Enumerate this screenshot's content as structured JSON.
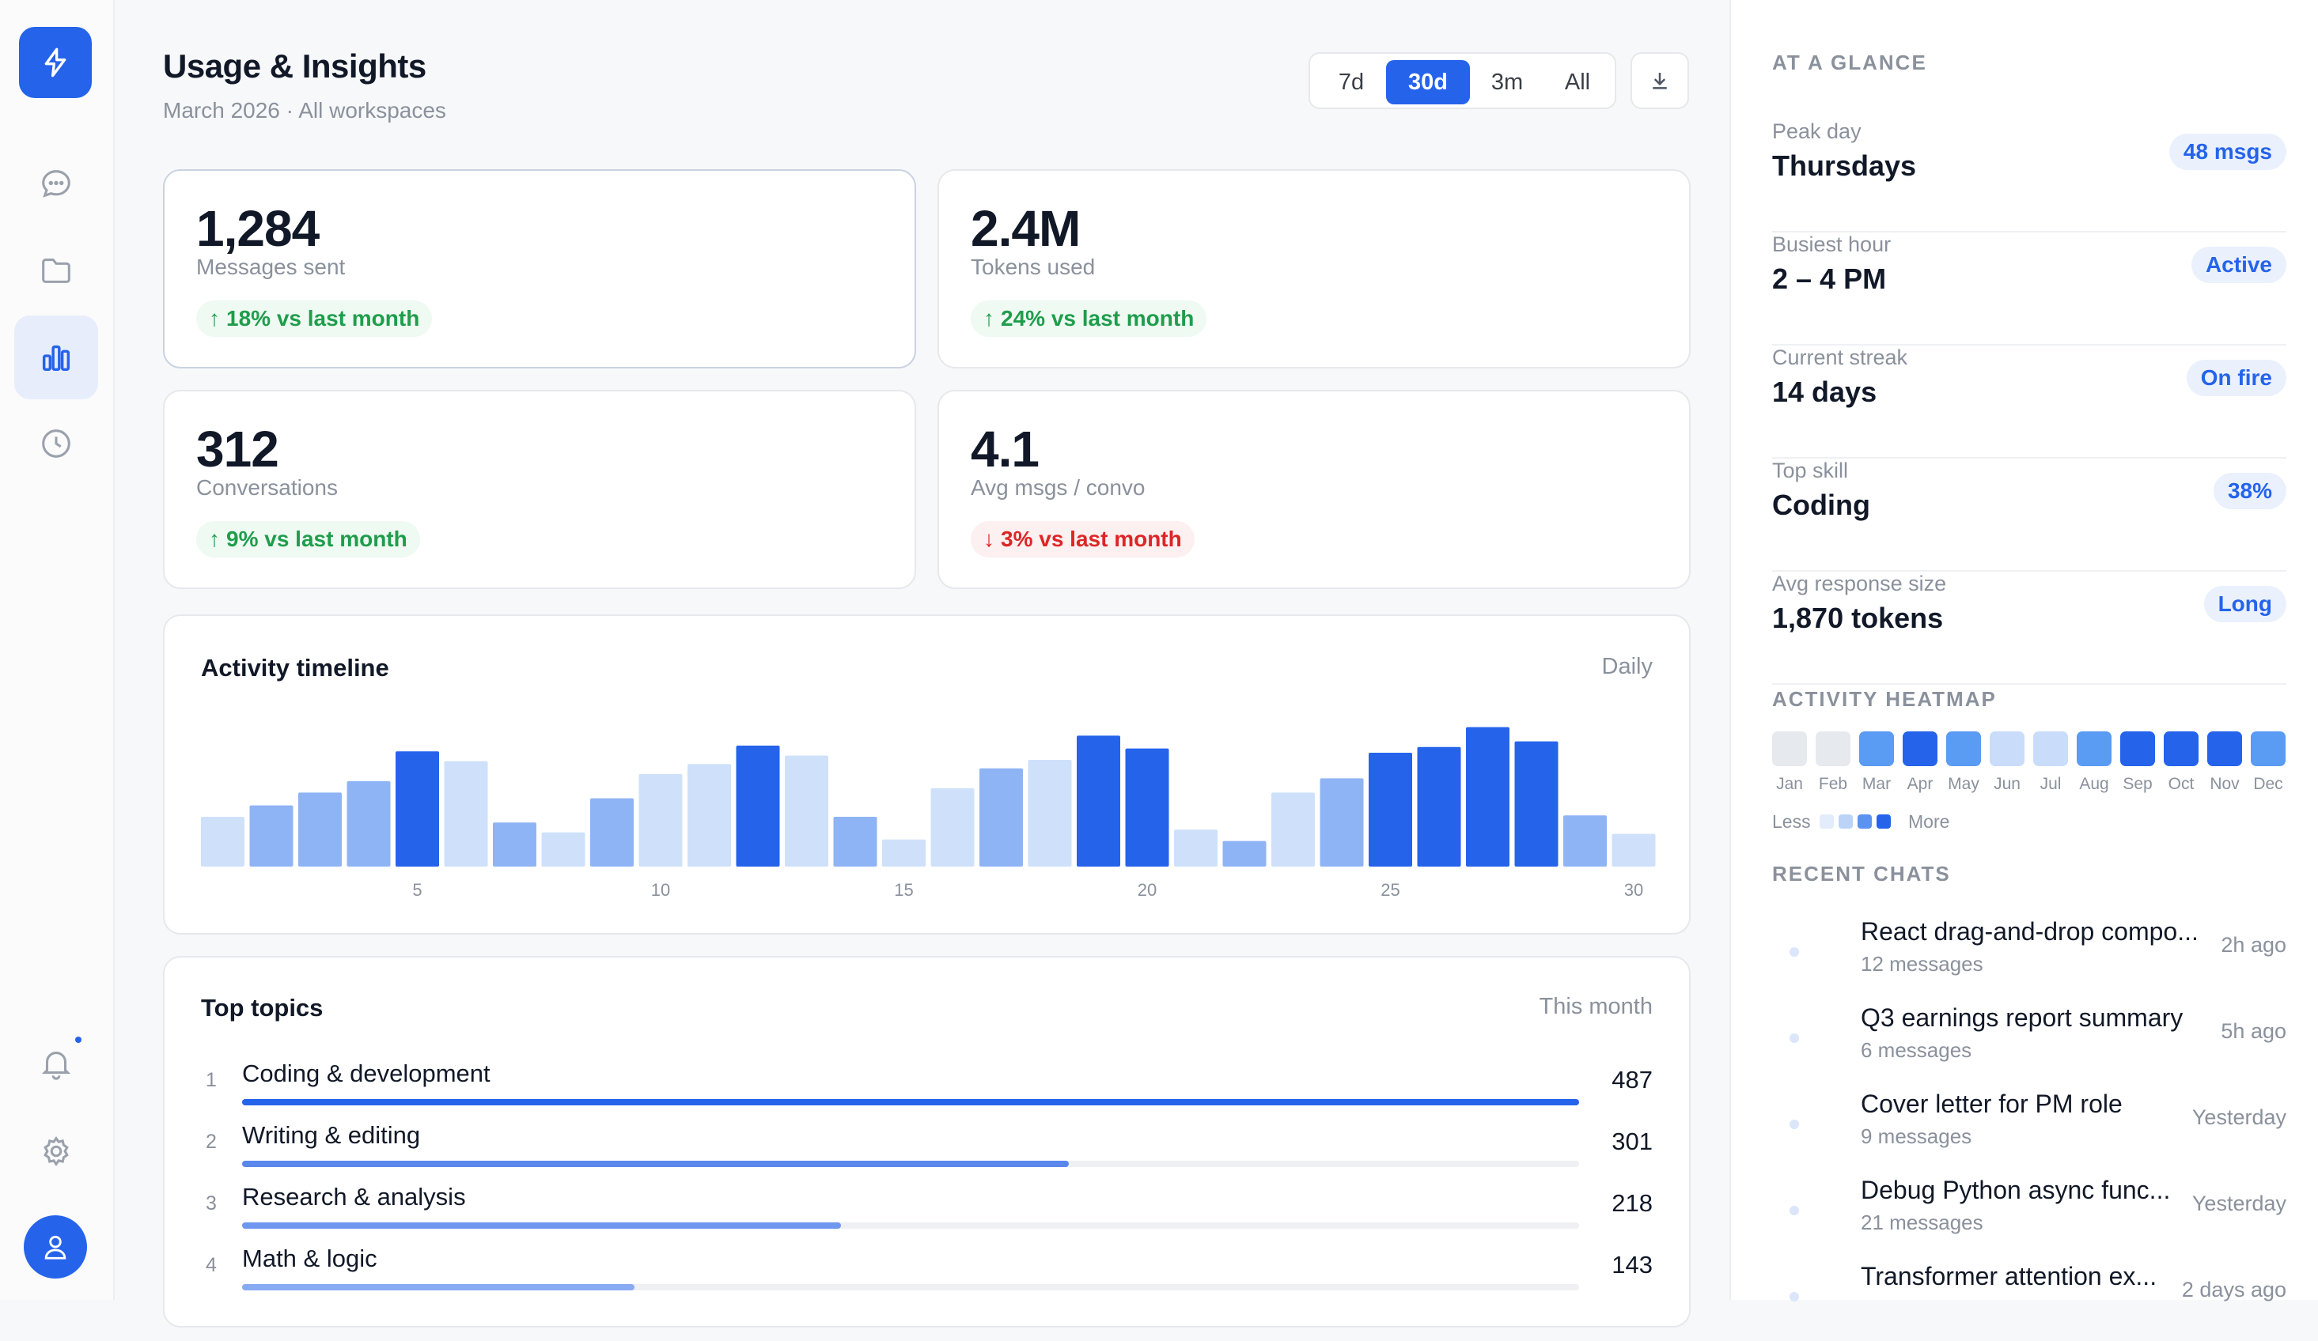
{
  "header": {
    "title": "Usage & Insights",
    "subtitle": "March 2026 · All workspaces"
  },
  "range": {
    "options": [
      "7d",
      "30d",
      "3m",
      "All"
    ],
    "selected": "30d"
  },
  "stats": [
    {
      "value": "1,284",
      "label": "Messages sent",
      "delta": "18% vs last month",
      "direction": "up"
    },
    {
      "value": "2.4M",
      "label": "Tokens used",
      "delta": "24% vs last month",
      "direction": "up"
    },
    {
      "value": "312",
      "label": "Conversations",
      "delta": "9% vs last month",
      "direction": "up"
    },
    {
      "value": "4.1",
      "label": "Avg msgs / convo",
      "delta": "3% vs last month",
      "direction": "down"
    }
  ],
  "timeline": {
    "title": "Activity timeline",
    "aside": "Daily"
  },
  "chart_data": {
    "type": "bar",
    "x": [
      1,
      2,
      3,
      4,
      5,
      6,
      7,
      8,
      9,
      10,
      11,
      12,
      13,
      14,
      15,
      16,
      17,
      18,
      19,
      20,
      21,
      22,
      23,
      24,
      25,
      26,
      27,
      28,
      29,
      30
    ],
    "tick_labels": [
      "5",
      "10",
      "15",
      "20",
      "25",
      "30"
    ],
    "tick_values": [
      5,
      10,
      15,
      20,
      25,
      30
    ],
    "values": [
      35,
      43,
      52,
      60,
      81,
      74,
      31,
      24,
      48,
      65,
      72,
      85,
      78,
      35,
      19,
      55,
      69,
      75,
      92,
      83,
      26,
      18,
      52,
      62,
      80,
      84,
      98,
      88,
      36,
      23
    ],
    "intensity": [
      1,
      2,
      2,
      2,
      4,
      1,
      2,
      1,
      2,
      1,
      1,
      4,
      1,
      2,
      1,
      1,
      2,
      1,
      4,
      4,
      1,
      2,
      1,
      2,
      4,
      4,
      4,
      4,
      2,
      1
    ],
    "ylim": [
      0,
      100
    ],
    "title": "",
    "xlabel": "",
    "ylabel": "",
    "grid": false
  },
  "topics": {
    "title": "Top topics",
    "aside": "This month",
    "max": 487,
    "items": [
      {
        "rank": "1",
        "name": "Coding & development",
        "count": "487",
        "value": 487,
        "color": "#2563eb"
      },
      {
        "rank": "2",
        "name": "Writing & editing",
        "count": "301",
        "value": 301,
        "color": "#5a87ec"
      },
      {
        "rank": "3",
        "name": "Research & analysis",
        "count": "218",
        "value": 218,
        "color": "#6f97ef"
      },
      {
        "rank": "4",
        "name": "Math & logic",
        "count": "143",
        "value": 143,
        "color": "#88aaf2"
      }
    ]
  },
  "glance": {
    "label": "AT A GLANCE",
    "items": [
      {
        "label": "Peak day",
        "value": "Thursdays",
        "badge": "48 msgs"
      },
      {
        "label": "Busiest hour",
        "value": "2 – 4 PM",
        "badge": "Active"
      },
      {
        "label": "Current streak",
        "value": "14 days",
        "badge": "On fire"
      },
      {
        "label": "Top skill",
        "value": "Coding",
        "badge": "38%"
      },
      {
        "label": "Avg response size",
        "value": "1,870 tokens",
        "badge": "Long"
      }
    ]
  },
  "heatmap": {
    "label": "ACTIVITY HEATMAP",
    "months": [
      "Jan",
      "Feb",
      "Mar",
      "Apr",
      "May",
      "Jun",
      "Jul",
      "Aug",
      "Sep",
      "Oct",
      "Nov",
      "Dec"
    ],
    "levels": [
      0,
      0,
      3,
      4,
      3,
      2,
      2,
      3,
      4,
      4,
      4,
      3
    ],
    "legend_less": "Less",
    "legend_more": "More"
  },
  "recent": {
    "label": "RECENT CHATS",
    "items": [
      {
        "title": "React drag-and-drop compo...",
        "sub": "12 messages",
        "time": "2h ago"
      },
      {
        "title": "Q3 earnings report summary",
        "sub": "6 messages",
        "time": "5h ago"
      },
      {
        "title": "Cover letter for PM role",
        "sub": "9 messages",
        "time": "Yesterday"
      },
      {
        "title": "Debug Python async func...",
        "sub": "21 messages",
        "time": "Yesterday"
      },
      {
        "title": "Transformer attention ex...",
        "sub": "",
        "time": "2 days ago"
      }
    ]
  },
  "colors": {
    "accent": "#2563eb",
    "up": "#1f9d4c",
    "down": "#dc2626",
    "bar_levels": [
      "#e3ecfb",
      "#cfe0fb",
      "#8fb4f5",
      "#5a93f2",
      "#2563eb"
    ]
  },
  "icons": {
    "logo": "bolt-icon",
    "nav": [
      "chat-bubble-icon",
      "folder-icon",
      "bar-chart-icon",
      "clock-icon"
    ],
    "bottom": [
      "bell-icon",
      "gear-icon",
      "user-icon"
    ],
    "download": "download-icon"
  }
}
